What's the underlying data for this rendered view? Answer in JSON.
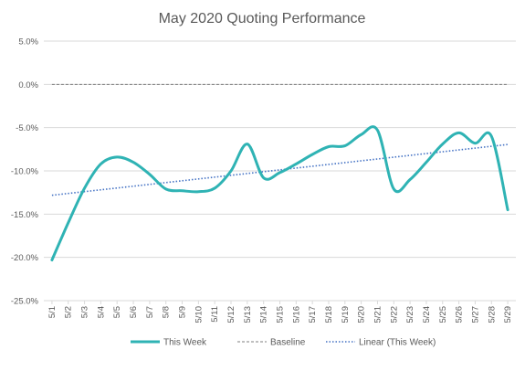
{
  "chart_data": {
    "type": "line",
    "title": "May 2020 Quoting Performance",
    "xlabel": "",
    "ylabel": "",
    "categories": [
      "5/1",
      "5/2",
      "5/3",
      "5/4",
      "5/5",
      "5/6",
      "5/7",
      "5/8",
      "5/9",
      "5/10",
      "5/11",
      "5/12",
      "5/13",
      "5/14",
      "5/15",
      "5/16",
      "5/17",
      "5/18",
      "5/19",
      "5/20",
      "5/21",
      "5/22",
      "5/23",
      "5/24",
      "5/25",
      "5/26",
      "5/27",
      "5/28",
      "5/29"
    ],
    "ylim": [
      -25,
      5
    ],
    "yticks": [
      5,
      0,
      -5,
      -10,
      -15,
      -20,
      -25
    ],
    "ytick_labels": [
      "5.0%",
      "0.0%",
      "-5.0%",
      "-10.0%",
      "-15.0%",
      "-20.0%",
      "-25.0%"
    ],
    "grid": true,
    "legend_position": "bottom",
    "series": [
      {
        "name": "This Week",
        "style": "solid-smooth",
        "color": "#2FB3B4",
        "values": [
          -20.3,
          -16.0,
          -12.0,
          -9.2,
          -8.4,
          -9.0,
          -10.4,
          -12.1,
          -12.3,
          -12.4,
          -12.0,
          -10.0,
          -6.9,
          -10.8,
          -10.2,
          -9.2,
          -8.1,
          -7.2,
          -7.1,
          -5.8,
          -5.3,
          -12.1,
          -11.0,
          -9.0,
          -6.9,
          -5.6,
          -6.8,
          -6.0,
          -14.5
        ]
      },
      {
        "name": "Baseline",
        "style": "dashed",
        "color": "#7F7F7F",
        "values": [
          0,
          0,
          0,
          0,
          0,
          0,
          0,
          0,
          0,
          0,
          0,
          0,
          0,
          0,
          0,
          0,
          0,
          0,
          0,
          0,
          0,
          0,
          0,
          0,
          0,
          0,
          0,
          0,
          0
        ]
      },
      {
        "name": "Linear (This Week)",
        "style": "dotted",
        "color": "#4472C4",
        "trendline_of": "This Week"
      }
    ]
  }
}
